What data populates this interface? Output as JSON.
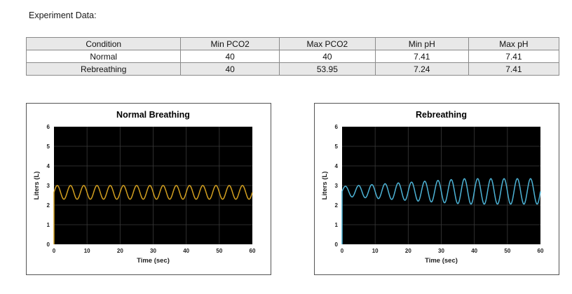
{
  "heading": "Experiment Data:",
  "table": {
    "headers": [
      "Condition",
      "Min PCO2",
      "Max PCO2",
      "Min pH",
      "Max pH"
    ],
    "rows": [
      [
        "Normal",
        "40",
        "40",
        "7.41",
        "7.41"
      ],
      [
        "Rebreathing",
        "40",
        "53.95",
        "7.24",
        "7.41"
      ]
    ]
  },
  "chart_data": [
    {
      "type": "line",
      "title": "Normal Breathing",
      "xlabel": "Time (sec)",
      "ylabel": "Liters (L)",
      "xlim": [
        0,
        60
      ],
      "ylim": [
        0,
        6
      ],
      "xticks": [
        0,
        10,
        20,
        30,
        40,
        50,
        60
      ],
      "yticks": [
        0,
        1,
        2,
        3,
        4,
        5,
        6
      ],
      "color": "#d3a020",
      "series": [
        {
          "name": "Normal Breathing",
          "baseline": 2.65,
          "amplitude_start": 0.35,
          "amplitude_end": 0.35,
          "cycles": 15
        }
      ]
    },
    {
      "type": "line",
      "title": "Rebreathing",
      "xlabel": "Time (sec)",
      "ylabel": "Liters (L)",
      "xlim": [
        0,
        60
      ],
      "ylim": [
        0,
        6
      ],
      "xticks": [
        0,
        10,
        20,
        30,
        40,
        50,
        60
      ],
      "yticks": [
        0,
        1,
        2,
        3,
        4,
        5,
        6
      ],
      "color": "#4db3d6",
      "series": [
        {
          "name": "Rebreathing",
          "baseline": 2.7,
          "amplitude_start": 0.25,
          "amplitude_end": 0.65,
          "cycles": 15
        }
      ]
    }
  ]
}
